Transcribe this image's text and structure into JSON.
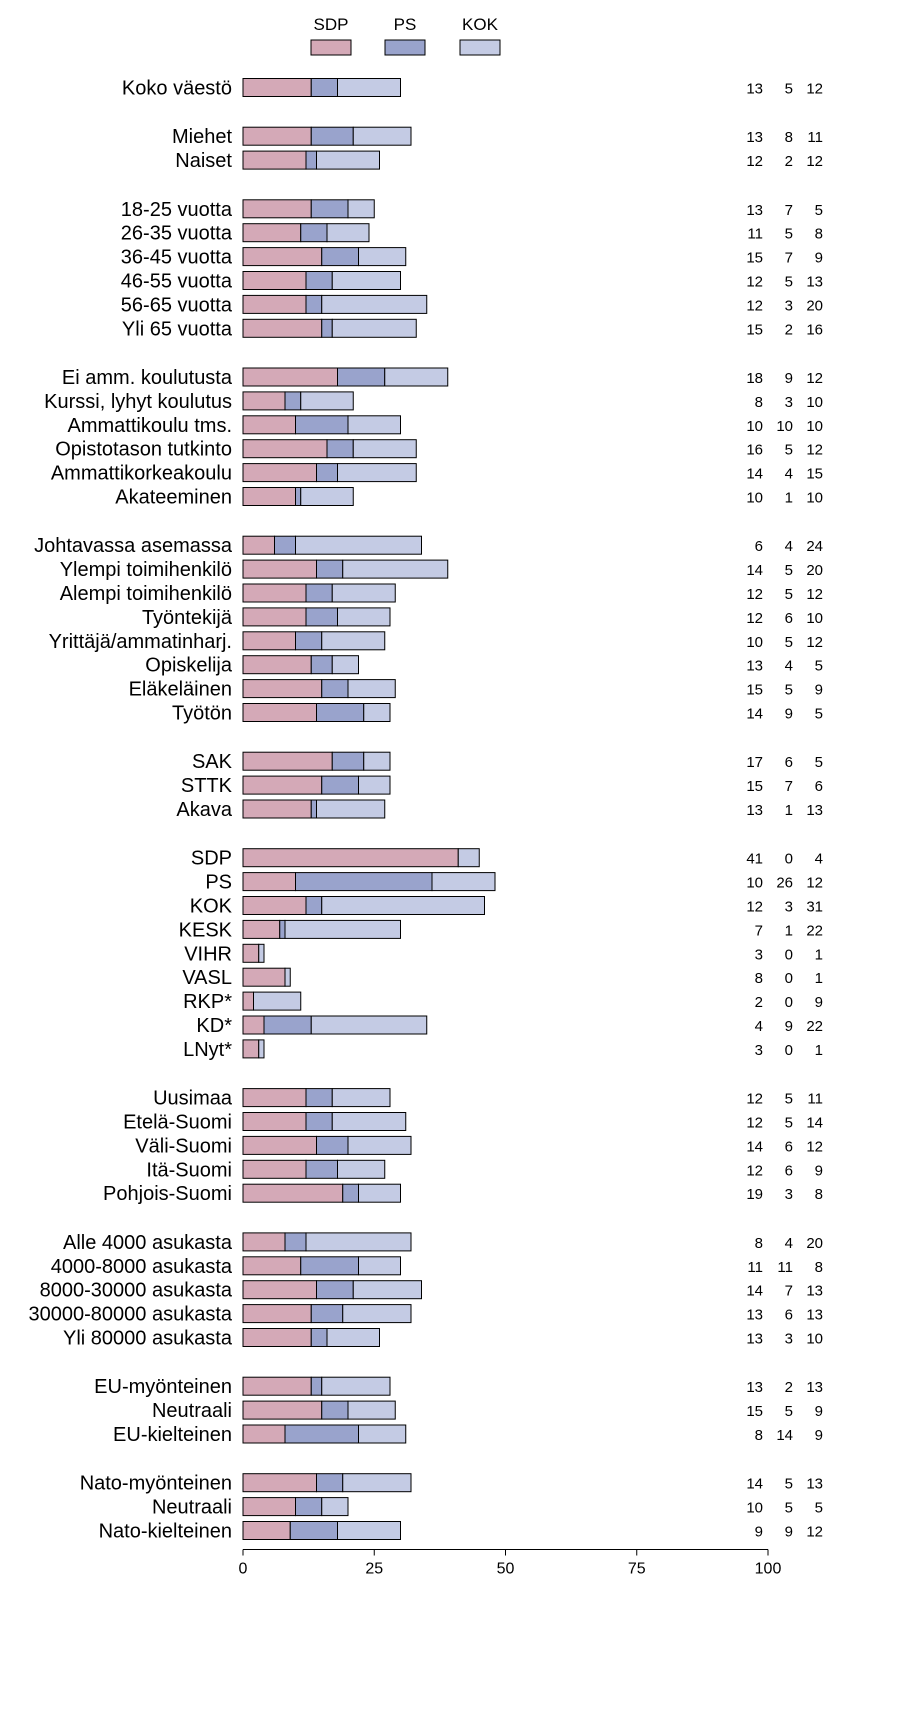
{
  "chart_data": {
    "type": "bar",
    "orientation": "horizontal",
    "stacked": true,
    "legend_position": "top",
    "xlim": [
      0,
      100
    ],
    "xticks": [
      0,
      25,
      50,
      75,
      100
    ],
    "grid": false,
    "series": [
      {
        "name": "SDP",
        "color": "#d4a9b7"
      },
      {
        "name": "PS",
        "color": "#99a3cc"
      },
      {
        "name": "KOK",
        "color": "#c4cbe4"
      }
    ],
    "groups": [
      {
        "rows": [
          {
            "label": "Koko väestö",
            "values": [
              13,
              5,
              12
            ]
          }
        ]
      },
      {
        "rows": [
          {
            "label": "Miehet",
            "values": [
              13,
              8,
              11
            ]
          },
          {
            "label": "Naiset",
            "values": [
              12,
              2,
              12
            ]
          }
        ]
      },
      {
        "rows": [
          {
            "label": "18-25 vuotta",
            "values": [
              13,
              7,
              5
            ]
          },
          {
            "label": "26-35 vuotta",
            "values": [
              11,
              5,
              8
            ]
          },
          {
            "label": "36-45 vuotta",
            "values": [
              15,
              7,
              9
            ]
          },
          {
            "label": "46-55 vuotta",
            "values": [
              12,
              5,
              13
            ]
          },
          {
            "label": "56-65 vuotta",
            "values": [
              12,
              3,
              20
            ]
          },
          {
            "label": "Yli 65 vuotta",
            "values": [
              15,
              2,
              16
            ]
          }
        ]
      },
      {
        "rows": [
          {
            "label": "Ei amm. koulutusta",
            "values": [
              18,
              9,
              12
            ]
          },
          {
            "label": "Kurssi, lyhyt koulutus",
            "values": [
              8,
              3,
              10
            ]
          },
          {
            "label": "Ammattikoulu tms.",
            "values": [
              10,
              10,
              10
            ]
          },
          {
            "label": "Opistotason tutkinto",
            "values": [
              16,
              5,
              12
            ]
          },
          {
            "label": "Ammattikorkeakoulu",
            "values": [
              14,
              4,
              15
            ]
          },
          {
            "label": "Akateeminen",
            "values": [
              10,
              1,
              10
            ]
          }
        ]
      },
      {
        "rows": [
          {
            "label": "Johtavassa asemassa",
            "values": [
              6,
              4,
              24
            ]
          },
          {
            "label": "Ylempi toimihenkilö",
            "values": [
              14,
              5,
              20
            ]
          },
          {
            "label": "Alempi toimihenkilö",
            "values": [
              12,
              5,
              12
            ]
          },
          {
            "label": "Työntekijä",
            "values": [
              12,
              6,
              10
            ]
          },
          {
            "label": "Yrittäjä/ammatinharj.",
            "values": [
              10,
              5,
              12
            ]
          },
          {
            "label": "Opiskelija",
            "values": [
              13,
              4,
              5
            ]
          },
          {
            "label": "Eläkeläinen",
            "values": [
              15,
              5,
              9
            ]
          },
          {
            "label": "Työtön",
            "values": [
              14,
              9,
              5
            ]
          }
        ]
      },
      {
        "rows": [
          {
            "label": "SAK",
            "values": [
              17,
              6,
              5
            ]
          },
          {
            "label": "STTK",
            "values": [
              15,
              7,
              6
            ]
          },
          {
            "label": "Akava",
            "values": [
              13,
              1,
              13
            ]
          }
        ]
      },
      {
        "rows": [
          {
            "label": "SDP",
            "values": [
              41,
              0,
              4
            ]
          },
          {
            "label": "PS",
            "values": [
              10,
              26,
              12
            ]
          },
          {
            "label": "KOK",
            "values": [
              12,
              3,
              31
            ]
          },
          {
            "label": "KESK",
            "values": [
              7,
              1,
              22
            ]
          },
          {
            "label": "VIHR",
            "values": [
              3,
              0,
              1
            ]
          },
          {
            "label": "VASL",
            "values": [
              8,
              0,
              1
            ]
          },
          {
            "label": "RKP*",
            "values": [
              2,
              0,
              9
            ]
          },
          {
            "label": "KD*",
            "values": [
              4,
              9,
              22
            ]
          },
          {
            "label": "LNyt*",
            "values": [
              3,
              0,
              1
            ]
          }
        ]
      },
      {
        "rows": [
          {
            "label": "Uusimaa",
            "values": [
              12,
              5,
              11
            ]
          },
          {
            "label": "Etelä-Suomi",
            "values": [
              12,
              5,
              14
            ]
          },
          {
            "label": "Väli-Suomi",
            "values": [
              14,
              6,
              12
            ]
          },
          {
            "label": "Itä-Suomi",
            "values": [
              12,
              6,
              9
            ]
          },
          {
            "label": "Pohjois-Suomi",
            "values": [
              19,
              3,
              8
            ]
          }
        ]
      },
      {
        "rows": [
          {
            "label": "Alle 4000 asukasta",
            "values": [
              8,
              4,
              20
            ]
          },
          {
            "label": "4000-8000 asukasta",
            "values": [
              11,
              11,
              8
            ]
          },
          {
            "label": "8000-30000 asukasta",
            "values": [
              14,
              7,
              13
            ]
          },
          {
            "label": "30000-80000 asukasta",
            "values": [
              13,
              6,
              13
            ]
          },
          {
            "label": "Yli 80000 asukasta",
            "values": [
              13,
              3,
              10
            ]
          }
        ]
      },
      {
        "rows": [
          {
            "label": "EU-myönteinen",
            "values": [
              13,
              2,
              13
            ]
          },
          {
            "label": "Neutraali",
            "values": [
              15,
              5,
              9
            ]
          },
          {
            "label": "EU-kielteinen",
            "values": [
              8,
              14,
              9
            ]
          }
        ]
      },
      {
        "rows": [
          {
            "label": "Nato-myönteinen",
            "values": [
              14,
              5,
              13
            ]
          },
          {
            "label": "Neutraali",
            "values": [
              10,
              5,
              5
            ]
          },
          {
            "label": "Nato-kielteinen",
            "values": [
              9,
              9,
              12
            ]
          }
        ]
      }
    ]
  }
}
